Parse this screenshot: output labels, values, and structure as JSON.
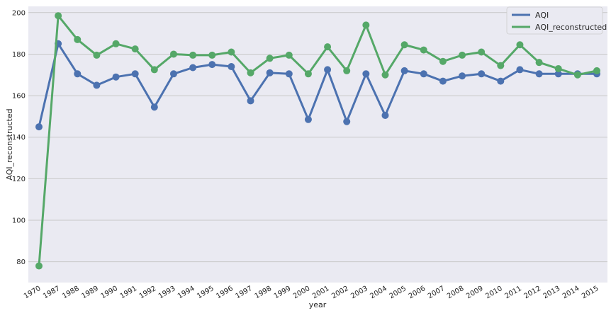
{
  "chart_data": {
    "type": "line",
    "title": "",
    "xlabel": "year",
    "ylabel": "AQI_reconstructed",
    "categories": [
      "1970",
      "1987",
      "1988",
      "1989",
      "1990",
      "1991",
      "1992",
      "1993",
      "1994",
      "1995",
      "1996",
      "1997",
      "1998",
      "1999",
      "2000",
      "2001",
      "2002",
      "2003",
      "2004",
      "2005",
      "2006",
      "2007",
      "2008",
      "2009",
      "2010",
      "2011",
      "2012",
      "2013",
      "2014",
      "2015"
    ],
    "ylim": [
      70,
      203
    ],
    "yticks": [
      80,
      100,
      120,
      140,
      160,
      180,
      200
    ],
    "grid": true,
    "legend_position": "top-right",
    "series": [
      {
        "name": "AQI",
        "color": "#4c72b0",
        "values": [
          145,
          185,
          170.5,
          165,
          169,
          170.5,
          154.5,
          170.5,
          173.5,
          175,
          174,
          157.5,
          171,
          170.5,
          148.5,
          172.5,
          147.5,
          170.5,
          150.5,
          172,
          170.5,
          167,
          169.5,
          170.5,
          167,
          172.5,
          170.5,
          170.5,
          170.5,
          170.5
        ]
      },
      {
        "name": "AQI_reconstructed",
        "color": "#55a868",
        "values": [
          78,
          198.5,
          187,
          179.5,
          185,
          182.5,
          172.5,
          180,
          179.5,
          179.5,
          181,
          171,
          178,
          179.5,
          170.5,
          183.5,
          172,
          194,
          170,
          184.5,
          182,
          176.5,
          179.5,
          181,
          174.5,
          184.5,
          176,
          173,
          170,
          172
        ]
      }
    ]
  }
}
